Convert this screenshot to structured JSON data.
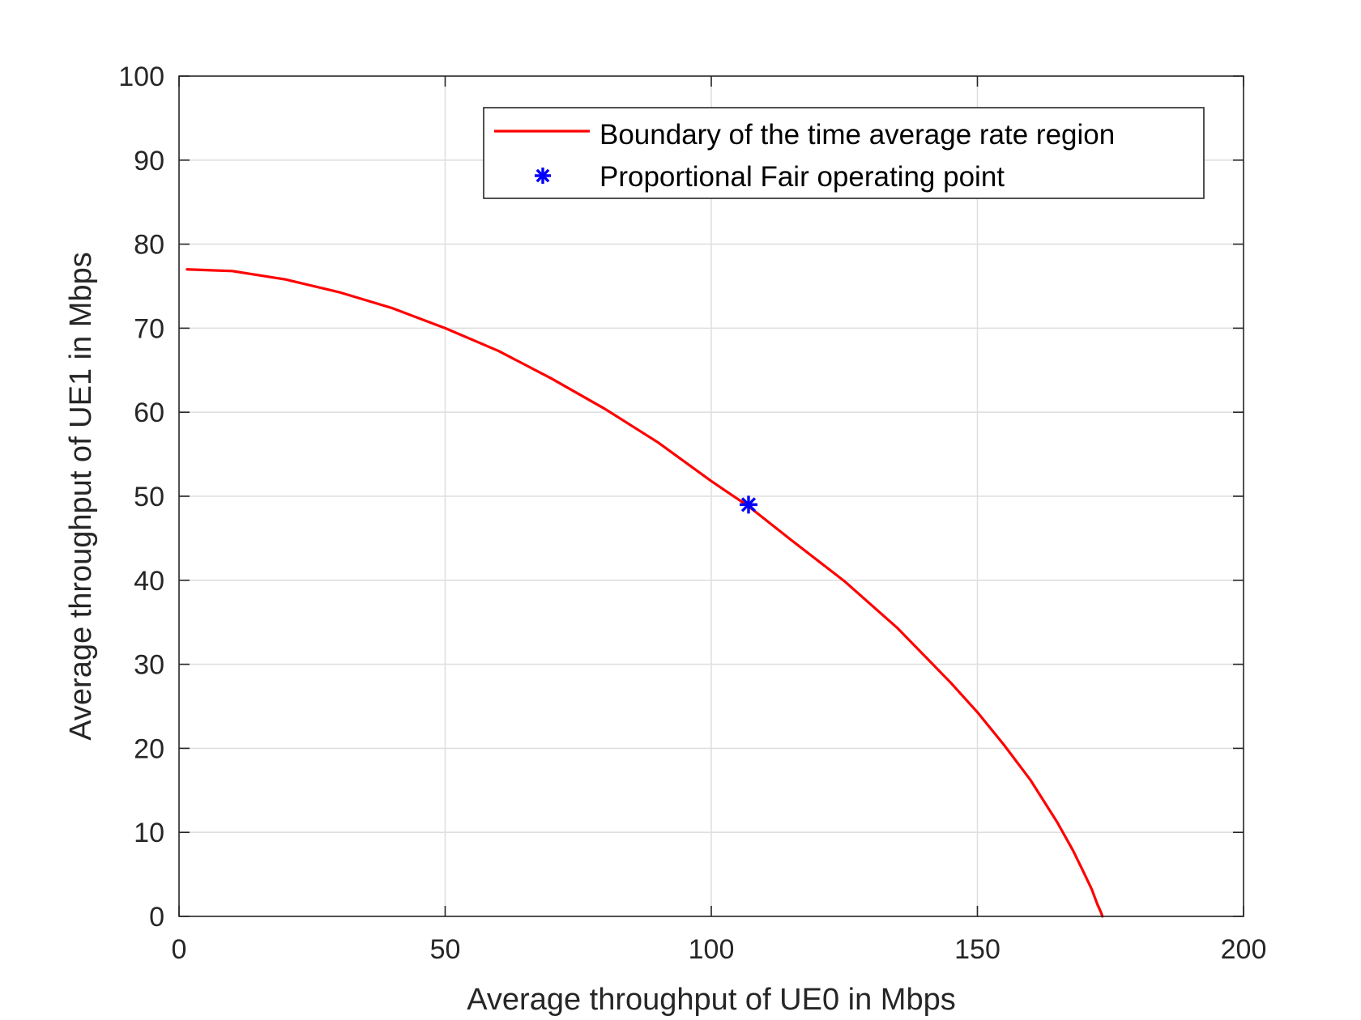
{
  "chart_data": {
    "type": "line",
    "title": "",
    "xlabel": "Average throughput of UE0 in Mbps",
    "ylabel": "Average throughput of UE1 in Mbps",
    "xlim": [
      0,
      200
    ],
    "ylim": [
      0,
      100
    ],
    "xticks": [
      0,
      50,
      100,
      150,
      200
    ],
    "yticks": [
      0,
      10,
      20,
      30,
      40,
      50,
      60,
      70,
      80,
      90,
      100
    ],
    "grid": true,
    "legend_position": "top-right",
    "series": [
      {
        "name": "Boundary of the time average rate region",
        "color": "#ff0000",
        "style": "line",
        "x": [
          1.5,
          10,
          20,
          30,
          40,
          50,
          60,
          70,
          80,
          90,
          100,
          107,
          115,
          125,
          135,
          145,
          150,
          155,
          160,
          165,
          168,
          170,
          171.5,
          172.5,
          173.2,
          173.5
        ],
        "y": [
          77,
          76.8,
          75.8,
          74.3,
          72.4,
          70,
          67.3,
          64,
          60.4,
          56.4,
          51.8,
          48.8,
          44.8,
          39.9,
          34.3,
          27.8,
          24.3,
          20.4,
          16.2,
          11.2,
          7.8,
          5.2,
          3.2,
          1.5,
          0.5,
          0
        ]
      },
      {
        "name": "Proportional Fair operating point",
        "color": "#0000ff",
        "style": "marker",
        "x": [
          107
        ],
        "y": [
          49
        ]
      }
    ]
  }
}
